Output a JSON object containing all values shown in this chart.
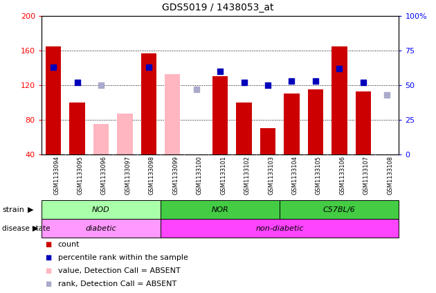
{
  "title": "GDS5019 / 1438053_at",
  "samples": [
    "GSM1133094",
    "GSM1133095",
    "GSM1133096",
    "GSM1133097",
    "GSM1133098",
    "GSM1133099",
    "GSM1133100",
    "GSM1133101",
    "GSM1133102",
    "GSM1133103",
    "GSM1133104",
    "GSM1133105",
    "GSM1133106",
    "GSM1133107",
    "GSM1133108"
  ],
  "count_values": [
    165,
    100,
    null,
    null,
    157,
    null,
    40,
    130,
    100,
    70,
    110,
    115,
    165,
    113,
    null
  ],
  "absent_bar_values": [
    null,
    null,
    75,
    87,
    null,
    133,
    null,
    null,
    null,
    null,
    null,
    null,
    null,
    null,
    40
  ],
  "rank_values": [
    63,
    52,
    null,
    null,
    63,
    null,
    null,
    60,
    52,
    50,
    53,
    53,
    62,
    52,
    null
  ],
  "absent_rank_values": [
    null,
    null,
    50,
    null,
    null,
    null,
    47,
    null,
    null,
    null,
    null,
    null,
    null,
    null,
    43
  ],
  "ylim_left": [
    40,
    200
  ],
  "ylim_right": [
    0,
    100
  ],
  "left_ticks": [
    40,
    80,
    120,
    160,
    200
  ],
  "right_ticks": [
    0,
    25,
    50,
    75,
    100
  ],
  "bar_color": "#CC0000",
  "absent_bar_color": "#FFB6C1",
  "rank_color": "#0000BB",
  "absent_rank_color": "#AAAACC",
  "xtick_bg_color": "#C8C8C8",
  "nod_color": "#AAFFAA",
  "nor_color": "#44CC44",
  "c57_color": "#44CC44",
  "diabetic_color": "#FF99FF",
  "nondiabetic_color": "#FF44FF",
  "legend_items": [
    {
      "color": "#CC0000",
      "label": "count"
    },
    {
      "color": "#0000BB",
      "label": "percentile rank within the sample"
    },
    {
      "color": "#FFB6C1",
      "label": "value, Detection Call = ABSENT"
    },
    {
      "color": "#AAAACC",
      "label": "rank, Detection Call = ABSENT"
    }
  ],
  "strain_groups": [
    {
      "label": "NOD",
      "start": 0,
      "end": 5,
      "color": "#AAFFAA"
    },
    {
      "label": "NOR",
      "start": 5,
      "end": 10,
      "color": "#44CC44"
    },
    {
      "label": "C57BL/6",
      "start": 10,
      "end": 15,
      "color": "#44CC44"
    }
  ],
  "disease_groups": [
    {
      "label": "diabetic",
      "start": 0,
      "end": 5,
      "color": "#FF99FF"
    },
    {
      "label": "non-diabetic",
      "start": 5,
      "end": 15,
      "color": "#FF44FF"
    }
  ]
}
